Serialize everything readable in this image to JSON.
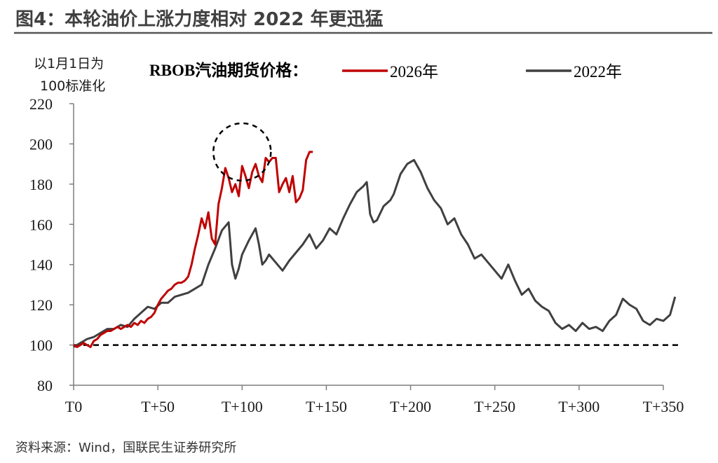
{
  "figure": {
    "title": "图4：本轮油价上涨力度相对 2022 年更迅猛",
    "unit_label_line1": "以1月1日为",
    "unit_label_line2": "100标准化",
    "legend_title": "RBOB汽油期货价格：",
    "source": "资料来源：Wind，国联民生证券研究所"
  },
  "colors": {
    "series_2026": "#c00000",
    "series_2022": "#404040",
    "axis": "#7f7f7f",
    "title_rule": "#555555"
  },
  "chart_data": {
    "type": "line",
    "title": "",
    "xlabel": "",
    "ylabel": "以1月1日为100标准化",
    "xlim": [
      0,
      357
    ],
    "ylim": [
      80,
      220
    ],
    "yticks": [
      80,
      100,
      120,
      140,
      160,
      180,
      200,
      220
    ],
    "xticks": [
      {
        "value": 0,
        "label": "T0"
      },
      {
        "value": 50,
        "label": "T+50"
      },
      {
        "value": 100,
        "label": "T+100"
      },
      {
        "value": 150,
        "label": "T+150"
      },
      {
        "value": 200,
        "label": "T+200"
      },
      {
        "value": 250,
        "label": "T+250"
      },
      {
        "value": 300,
        "label": "T+300"
      },
      {
        "value": 350,
        "label": "T+350"
      }
    ],
    "grid": false,
    "legend_position": "top",
    "reference_line": {
      "y": 100,
      "style": "dashed"
    },
    "highlight_circle": {
      "x": 100,
      "y": 196,
      "note": "dashed circle around the 2026 peak"
    },
    "series": [
      {
        "name": "2026年",
        "color": "#c00000",
        "points": [
          [
            0,
            100
          ],
          [
            2,
            99
          ],
          [
            4,
            100
          ],
          [
            6,
            101
          ],
          [
            8,
            100
          ],
          [
            10,
            99
          ],
          [
            12,
            102
          ],
          [
            14,
            103
          ],
          [
            16,
            105
          ],
          [
            18,
            106
          ],
          [
            20,
            107
          ],
          [
            22,
            107
          ],
          [
            24,
            108
          ],
          [
            26,
            109
          ],
          [
            28,
            108
          ],
          [
            30,
            109
          ],
          [
            32,
            110
          ],
          [
            34,
            109
          ],
          [
            36,
            111
          ],
          [
            38,
            110
          ],
          [
            40,
            112
          ],
          [
            42,
            111
          ],
          [
            44,
            113
          ],
          [
            46,
            114
          ],
          [
            48,
            116
          ],
          [
            50,
            120
          ],
          [
            52,
            123
          ],
          [
            54,
            125
          ],
          [
            56,
            127
          ],
          [
            58,
            128
          ],
          [
            60,
            130
          ],
          [
            62,
            131
          ],
          [
            64,
            131
          ],
          [
            66,
            132
          ],
          [
            68,
            134
          ],
          [
            70,
            140
          ],
          [
            72,
            148
          ],
          [
            74,
            155
          ],
          [
            76,
            163
          ],
          [
            78,
            158
          ],
          [
            80,
            166
          ],
          [
            82,
            153
          ],
          [
            84,
            150
          ],
          [
            86,
            170
          ],
          [
            88,
            178
          ],
          [
            90,
            188
          ],
          [
            92,
            183
          ],
          [
            94,
            176
          ],
          [
            96,
            180
          ],
          [
            98,
            174
          ],
          [
            100,
            189
          ],
          [
            102,
            184
          ],
          [
            104,
            178
          ],
          [
            106,
            186
          ],
          [
            108,
            190
          ],
          [
            110,
            184
          ],
          [
            112,
            181
          ],
          [
            114,
            193
          ],
          [
            116,
            191
          ],
          [
            118,
            193
          ],
          [
            120,
            193
          ],
          [
            122,
            176
          ],
          [
            124,
            180
          ],
          [
            126,
            183
          ],
          [
            128,
            176
          ],
          [
            130,
            184
          ],
          [
            132,
            171
          ],
          [
            134,
            173
          ],
          [
            136,
            177
          ],
          [
            138,
            192
          ],
          [
            140,
            196
          ],
          [
            142,
            196
          ]
        ]
      },
      {
        "name": "2022年",
        "color": "#404040",
        "points": [
          [
            0,
            99
          ],
          [
            4,
            101
          ],
          [
            8,
            103
          ],
          [
            12,
            104
          ],
          [
            16,
            106
          ],
          [
            20,
            108
          ],
          [
            24,
            108
          ],
          [
            28,
            110
          ],
          [
            32,
            109
          ],
          [
            36,
            113
          ],
          [
            40,
            116
          ],
          [
            44,
            119
          ],
          [
            48,
            118
          ],
          [
            52,
            121
          ],
          [
            56,
            121
          ],
          [
            60,
            124
          ],
          [
            64,
            125
          ],
          [
            68,
            126
          ],
          [
            72,
            128
          ],
          [
            76,
            130
          ],
          [
            80,
            140
          ],
          [
            84,
            148
          ],
          [
            88,
            157
          ],
          [
            92,
            161
          ],
          [
            94,
            140
          ],
          [
            96,
            133
          ],
          [
            98,
            138
          ],
          [
            100,
            145
          ],
          [
            104,
            152
          ],
          [
            108,
            158
          ],
          [
            110,
            150
          ],
          [
            112,
            140
          ],
          [
            114,
            142
          ],
          [
            116,
            145
          ],
          [
            118,
            143
          ],
          [
            120,
            141
          ],
          [
            124,
            137
          ],
          [
            128,
            142
          ],
          [
            132,
            146
          ],
          [
            136,
            150
          ],
          [
            140,
            155
          ],
          [
            144,
            148
          ],
          [
            148,
            152
          ],
          [
            152,
            158
          ],
          [
            156,
            155
          ],
          [
            160,
            163
          ],
          [
            164,
            170
          ],
          [
            168,
            176
          ],
          [
            172,
            179
          ],
          [
            174,
            181
          ],
          [
            176,
            165
          ],
          [
            178,
            161
          ],
          [
            180,
            162
          ],
          [
            184,
            169
          ],
          [
            188,
            172
          ],
          [
            190,
            175
          ],
          [
            194,
            185
          ],
          [
            198,
            190
          ],
          [
            202,
            192
          ],
          [
            206,
            186
          ],
          [
            210,
            178
          ],
          [
            214,
            172
          ],
          [
            218,
            168
          ],
          [
            222,
            160
          ],
          [
            226,
            163
          ],
          [
            230,
            155
          ],
          [
            234,
            150
          ],
          [
            238,
            143
          ],
          [
            242,
            145
          ],
          [
            246,
            141
          ],
          [
            250,
            137
          ],
          [
            254,
            133
          ],
          [
            258,
            140
          ],
          [
            262,
            132
          ],
          [
            266,
            125
          ],
          [
            270,
            128
          ],
          [
            274,
            122
          ],
          [
            278,
            119
          ],
          [
            282,
            117
          ],
          [
            286,
            111
          ],
          [
            290,
            108
          ],
          [
            294,
            110
          ],
          [
            298,
            107
          ],
          [
            302,
            111
          ],
          [
            306,
            108
          ],
          [
            310,
            109
          ],
          [
            314,
            107
          ],
          [
            318,
            112
          ],
          [
            322,
            115
          ],
          [
            326,
            123
          ],
          [
            330,
            120
          ],
          [
            334,
            118
          ],
          [
            338,
            112
          ],
          [
            342,
            110
          ],
          [
            346,
            113
          ],
          [
            350,
            112
          ],
          [
            354,
            115
          ],
          [
            356,
            121
          ],
          [
            357,
            124
          ]
        ]
      }
    ]
  }
}
